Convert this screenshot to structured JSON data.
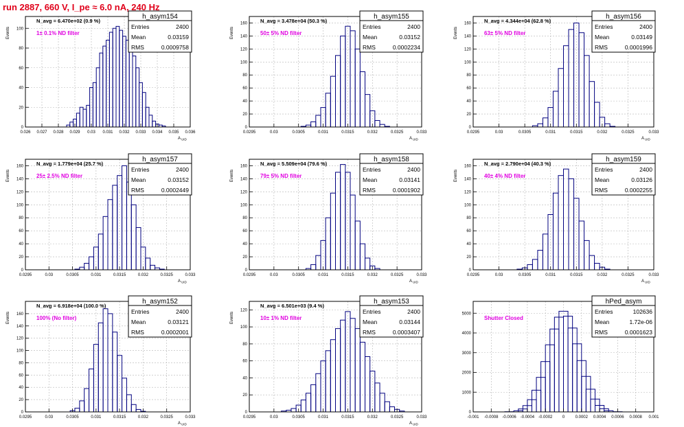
{
  "page": {
    "title": "run 2887,   660 V, I_pe ≈ 6.0 nA, 240 Hz",
    "colors": {
      "title": "#e0001a",
      "annotation": "#e000e0",
      "histogram": "#00007f",
      "frame": "#000000",
      "grid": "#b4b4b4",
      "background": "#ffffff"
    }
  },
  "chart_data": [
    {
      "name": "h_asym154",
      "type": "histogram",
      "stats": {
        "Entries": "2400",
        "Mean": "0.03159",
        "RMS": "0.0009758"
      },
      "navg_text": "N_avg = 6.470e+02 (0.9 %)",
      "note": "1± 0.1% ND filter",
      "xlabel": "A_UID",
      "ylabel": "Events",
      "xlim": [
        0.026,
        0.036
      ],
      "ylim": [
        0,
        112
      ],
      "xticks": [
        0.026,
        0.027,
        0.028,
        0.029,
        0.03,
        0.031,
        0.032,
        0.033,
        0.034,
        0.035,
        0.036
      ],
      "xtick_labels": [
        "0.026",
        "0.027",
        "0.028",
        "0.029",
        "0.03",
        "0.031",
        "0.032",
        "0.033",
        "0.034",
        "0.035",
        "0.036"
      ],
      "yticks": [
        0,
        20,
        40,
        60,
        80,
        100
      ],
      "x": [
        0.0286,
        0.0288,
        0.029,
        0.0292,
        0.0294,
        0.0296,
        0.0298,
        0.03,
        0.0302,
        0.0304,
        0.0306,
        0.0308,
        0.031,
        0.0312,
        0.0314,
        0.0316,
        0.0318,
        0.032,
        0.0322,
        0.0324,
        0.0326,
        0.0328,
        0.033,
        0.0332,
        0.0334,
        0.0336,
        0.0338,
        0.034,
        0.0342,
        0.0344
      ],
      "values": [
        2,
        5,
        8,
        14,
        20,
        18,
        22,
        40,
        45,
        60,
        75,
        82,
        88,
        96,
        100,
        102,
        98,
        92,
        88,
        80,
        72,
        60,
        45,
        35,
        20,
        12,
        6,
        3,
        2,
        1
      ]
    },
    {
      "name": "h_asym155",
      "type": "histogram",
      "stats": {
        "Entries": "2400",
        "Mean": "0.03152",
        "RMS": "0.0002234"
      },
      "navg_text": "N_avg = 3.478e+04 (50.3 %)",
      "note": "50± 5% ND filter",
      "xlabel": "A_UID",
      "ylabel": "Events",
      "xlim": [
        0.0295,
        0.033
      ],
      "ylim": [
        0,
        170
      ],
      "xticks": [
        0.0295,
        0.03,
        0.0305,
        0.031,
        0.0315,
        0.032,
        0.0325,
        0.033
      ],
      "xtick_labels": [
        "0.0295",
        "0.03",
        "0.0305",
        "0.031",
        "0.0315",
        "0.032",
        "0.0325",
        "0.033"
      ],
      "yticks": [
        0,
        20,
        40,
        60,
        80,
        100,
        120,
        140,
        160
      ],
      "x": [
        0.0306,
        0.0307,
        0.0308,
        0.0309,
        0.031,
        0.0311,
        0.0312,
        0.0313,
        0.0314,
        0.0315,
        0.0316,
        0.0317,
        0.0318,
        0.0319,
        0.032,
        0.0321,
        0.0322,
        0.0323
      ],
      "values": [
        1,
        3,
        8,
        18,
        30,
        52,
        78,
        110,
        140,
        155,
        148,
        120,
        85,
        50,
        25,
        10,
        4,
        1
      ]
    },
    {
      "name": "h_asym156",
      "type": "histogram",
      "stats": {
        "Entries": "2400",
        "Mean": "0.03149",
        "RMS": "0.0001996"
      },
      "navg_text": "N_avg = 4.344e+04 (62.8 %)",
      "note": "63± 5% ND filter",
      "xlabel": "A_UID",
      "ylabel": "Events",
      "xlim": [
        0.0295,
        0.033
      ],
      "ylim": [
        0,
        170
      ],
      "xticks": [
        0.0295,
        0.03,
        0.0305,
        0.031,
        0.0315,
        0.032,
        0.0325,
        0.033
      ],
      "xtick_labels": [
        "0.0295",
        "0.03",
        "0.0305",
        "0.031",
        "0.0315",
        "0.032",
        "0.0325",
        "0.033"
      ],
      "yticks": [
        0,
        20,
        40,
        60,
        80,
        100,
        120,
        140,
        160
      ],
      "x": [
        0.0307,
        0.0308,
        0.0309,
        0.031,
        0.0311,
        0.0312,
        0.0313,
        0.0314,
        0.0315,
        0.0316,
        0.0317,
        0.0318,
        0.0319,
        0.032,
        0.0321,
        0.0322
      ],
      "values": [
        2,
        5,
        14,
        30,
        55,
        90,
        125,
        150,
        160,
        145,
        110,
        70,
        38,
        15,
        5,
        1
      ]
    },
    {
      "name": "h_asym157",
      "type": "histogram",
      "stats": {
        "Entries": "2400",
        "Mean": "0.03152",
        "RMS": "0.0002449"
      },
      "navg_text": "N_avg = 1.779e+04 (25.7 %)",
      "note": "25± 2.5% ND filter",
      "xlabel": "A_UID",
      "ylabel": "Events",
      "xlim": [
        0.0295,
        0.033
      ],
      "ylim": [
        0,
        170
      ],
      "xticks": [
        0.0295,
        0.03,
        0.0305,
        0.031,
        0.0315,
        0.032,
        0.0325,
        0.033
      ],
      "xtick_labels": [
        "0.0295",
        "0.03",
        "0.0305",
        "0.031",
        "0.0315",
        "0.032",
        "0.0325",
        "0.033"
      ],
      "yticks": [
        0,
        20,
        40,
        60,
        80,
        100,
        120,
        140,
        160
      ],
      "x": [
        0.0306,
        0.0307,
        0.0308,
        0.0309,
        0.031,
        0.0311,
        0.0312,
        0.0313,
        0.0314,
        0.0315,
        0.0316,
        0.0317,
        0.0318,
        0.0319,
        0.032,
        0.0321,
        0.0322,
        0.0323,
        0.0324
      ],
      "values": [
        1,
        4,
        10,
        20,
        35,
        55,
        82,
        108,
        130,
        145,
        160,
        135,
        100,
        65,
        35,
        18,
        7,
        3,
        1
      ]
    },
    {
      "name": "h_asym158",
      "type": "histogram",
      "stats": {
        "Entries": "2400",
        "Mean": "0.03141",
        "RMS": "0.0001902"
      },
      "navg_text": "N_avg = 5.509e+04 (79.6 %)",
      "note": "79± 5% ND filter",
      "xlabel": "A_UID",
      "ylabel": "Events",
      "xlim": [
        0.0295,
        0.033
      ],
      "ylim": [
        0,
        170
      ],
      "xticks": [
        0.0295,
        0.03,
        0.0305,
        0.031,
        0.0315,
        0.032,
        0.0325,
        0.033
      ],
      "xtick_labels": [
        "0.0295",
        "0.03",
        "0.0305",
        "0.031",
        "0.0315",
        "0.032",
        "0.0325",
        "0.033"
      ],
      "yticks": [
        0,
        20,
        40,
        60,
        80,
        100,
        120,
        140,
        160
      ],
      "x": [
        0.0307,
        0.0308,
        0.0309,
        0.031,
        0.0311,
        0.0312,
        0.0313,
        0.0314,
        0.0315,
        0.0316,
        0.0317,
        0.0318,
        0.0319,
        0.032,
        0.0321
      ],
      "values": [
        2,
        8,
        22,
        45,
        80,
        118,
        150,
        162,
        150,
        115,
        75,
        40,
        18,
        6,
        2
      ]
    },
    {
      "name": "h_asym159",
      "type": "histogram",
      "stats": {
        "Entries": "2400",
        "Mean": "0.03126",
        "RMS": "0.0002255"
      },
      "navg_text": "N_avg = 2.790e+04 (40.3 %)",
      "note": "40± 4% ND filter",
      "xlabel": "A_UID",
      "ylabel": "Events",
      "xlim": [
        0.0295,
        0.033
      ],
      "ylim": [
        0,
        170
      ],
      "xticks": [
        0.0295,
        0.03,
        0.0305,
        0.031,
        0.0315,
        0.032,
        0.0325,
        0.033
      ],
      "xtick_labels": [
        "0.0295",
        "0.03",
        "0.0305",
        "0.031",
        "0.0315",
        "0.032",
        "0.0325",
        "0.033"
      ],
      "yticks": [
        0,
        20,
        40,
        60,
        80,
        100,
        120,
        140,
        160
      ],
      "x": [
        0.0304,
        0.0305,
        0.0306,
        0.0307,
        0.0308,
        0.0309,
        0.031,
        0.0311,
        0.0312,
        0.0313,
        0.0314,
        0.0315,
        0.0316,
        0.0317,
        0.0318,
        0.0319,
        0.032,
        0.0321
      ],
      "values": [
        1,
        3,
        8,
        16,
        30,
        55,
        85,
        118,
        145,
        155,
        140,
        110,
        75,
        45,
        22,
        10,
        4,
        1
      ]
    },
    {
      "name": "h_asym152",
      "type": "histogram",
      "stats": {
        "Entries": "2400",
        "Mean": "0.03121",
        "RMS": "0.0002001"
      },
      "navg_text": "N_avg = 6.918e+04 (100.0 %)",
      "note": "100% (No filter)",
      "xlabel": "A_UID",
      "ylabel": "Events",
      "xlim": [
        0.0295,
        0.033
      ],
      "ylim": [
        0,
        180
      ],
      "xticks": [
        0.0295,
        0.03,
        0.0305,
        0.031,
        0.0315,
        0.032,
        0.0325,
        0.033
      ],
      "xtick_labels": [
        "0.0295",
        "0.03",
        "0.0305",
        "0.031",
        "0.0315",
        "0.032",
        "0.0325",
        "0.033"
      ],
      "yticks": [
        0,
        20,
        40,
        60,
        80,
        100,
        120,
        140,
        160
      ],
      "x": [
        0.0305,
        0.0306,
        0.0307,
        0.0308,
        0.0309,
        0.031,
        0.0311,
        0.0312,
        0.0313,
        0.0314,
        0.0315,
        0.0316,
        0.0317,
        0.0318,
        0.0319,
        0.032
      ],
      "values": [
        2,
        6,
        18,
        38,
        70,
        110,
        145,
        168,
        160,
        130,
        92,
        55,
        28,
        12,
        4,
        1
      ]
    },
    {
      "name": "h_asym153",
      "type": "histogram",
      "stats": {
        "Entries": "2400",
        "Mean": "0.03144",
        "RMS": "0.0003407"
      },
      "navg_text": "N_avg = 6.501e+03 (9.4 %)",
      "note": "10± 1% ND filter",
      "xlabel": "A_UID",
      "ylabel": "Events",
      "xlim": [
        0.0295,
        0.033
      ],
      "ylim": [
        0,
        130
      ],
      "xticks": [
        0.0295,
        0.03,
        0.0305,
        0.031,
        0.0315,
        0.032,
        0.0325,
        0.033
      ],
      "xtick_labels": [
        "0.0295",
        "0.03",
        "0.0305",
        "0.031",
        "0.0315",
        "0.032",
        "0.0325",
        "0.033"
      ],
      "yticks": [
        0,
        20,
        40,
        60,
        80,
        100,
        120
      ],
      "x": [
        0.0302,
        0.0303,
        0.0304,
        0.0305,
        0.0306,
        0.0307,
        0.0308,
        0.0309,
        0.031,
        0.0311,
        0.0312,
        0.0313,
        0.0314,
        0.0315,
        0.0316,
        0.0317,
        0.0318,
        0.0319,
        0.032,
        0.0321,
        0.0322,
        0.0323,
        0.0324,
        0.0325,
        0.0326
      ],
      "values": [
        1,
        2,
        4,
        8,
        14,
        22,
        32,
        45,
        60,
        72,
        85,
        98,
        108,
        118,
        110,
        98,
        82,
        65,
        48,
        34,
        22,
        12,
        6,
        3,
        1
      ]
    },
    {
      "name": "hPed_asym",
      "type": "histogram",
      "stats": {
        "Entries": "102636",
        "Mean": "1.72e-06",
        "RMS": "0.0001623"
      },
      "navg_text": "",
      "note": "Shutter Closed",
      "xlabel": "",
      "ylabel": "",
      "xlim": [
        -0.001,
        0.001
      ],
      "ylim": [
        0,
        5600
      ],
      "xticks": [
        -0.001,
        -0.0008,
        -0.0006,
        -0.0004,
        -0.0002,
        0,
        0.0002,
        0.0004,
        0.0006,
        0.0008,
        0.001
      ],
      "xtick_labels": [
        "-0.001",
        "-0.0008",
        "-0.0006",
        "-0.0004",
        "-0.0002",
        "0",
        "0.0002",
        "0.0004",
        "0.0006",
        "0.0008",
        "0.001"
      ],
      "yticks": [
        0,
        1000,
        2000,
        3000,
        4000,
        5000
      ],
      "x": [
        -0.0006,
        -0.0005,
        -0.00045,
        -0.0004,
        -0.00035,
        -0.0003,
        -0.00025,
        -0.0002,
        -0.00015,
        -0.0001,
        -5e-05,
        0,
        5e-05,
        0.0001,
        0.00015,
        0.0002,
        0.00025,
        0.0003,
        0.00035,
        0.0004,
        0.00045,
        0.0005,
        0.0006
      ],
      "values": [
        10,
        60,
        150,
        320,
        620,
        1100,
        1750,
        2550,
        3400,
        4200,
        4800,
        5100,
        4850,
        4250,
        3450,
        2600,
        1800,
        1150,
        650,
        330,
        160,
        60,
        10
      ]
    }
  ]
}
